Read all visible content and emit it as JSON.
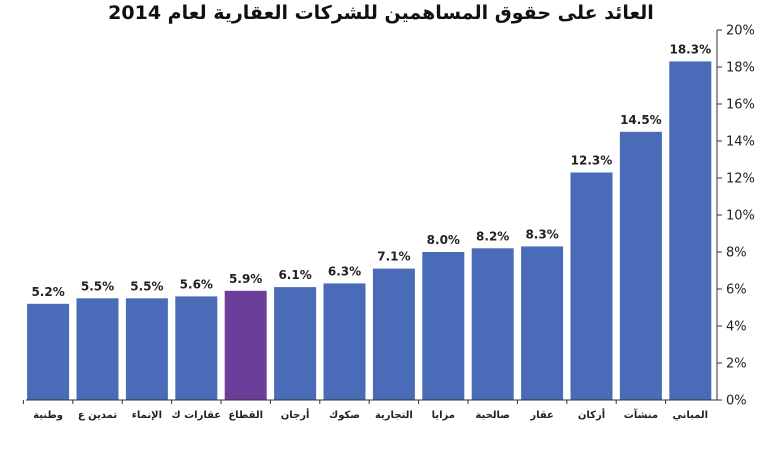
{
  "chart_data": {
    "type": "bar",
    "title": "العائد على حقوق المساهمين للشركات العقارية لعام 2014",
    "categories": [
      "المباني",
      "منشآت",
      "أركان",
      "عقار",
      "صالحية",
      "مزايا",
      "التجارية",
      "صكوك",
      "أرجان",
      "القطاع",
      "عقارات ك",
      "الإنماء",
      "تمدين ع",
      "وطنية"
    ],
    "values": [
      18.3,
      14.5,
      12.3,
      8.3,
      8.2,
      8.0,
      7.1,
      6.3,
      6.1,
      5.9,
      5.6,
      5.5,
      5.5,
      5.2
    ],
    "value_labels": [
      "18.3%",
      "14.5%",
      "12.3%",
      "8.3%",
      "8.2%",
      "8.0%",
      "7.1%",
      "6.3%",
      "6.1%",
      "5.9%",
      "5.6%",
      "5.5%",
      "5.5%",
      "5.2%"
    ],
    "y_ticks": [
      "0%",
      "2%",
      "4%",
      "6%",
      "8%",
      "10%",
      "12%",
      "14%",
      "16%",
      "18%",
      "20%"
    ],
    "ylim": [
      0,
      20
    ],
    "y_axis_side": "right",
    "category_order": "right-to-left",
    "colors": {
      "bar": "#4a6cb8",
      "highlight": "#6b3f99",
      "axis": "#333333"
    },
    "highlight_category": "القطاع",
    "grid": false,
    "legend": "none"
  }
}
